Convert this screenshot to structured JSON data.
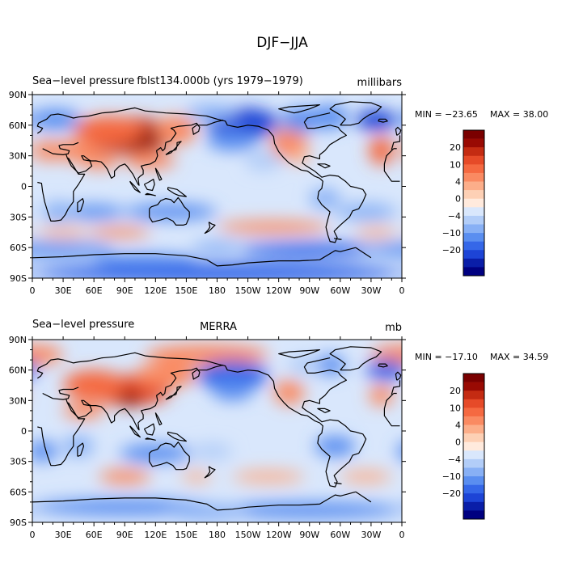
{
  "chart_data": {
    "type": "heatmap",
    "title": "DJF−JJA",
    "color_scale": {
      "colors": [
        "#000080",
        "#0a1ea8",
        "#1d44d6",
        "#3567e8",
        "#5a8ef0",
        "#88b0f5",
        "#b2cdf8",
        "#d9e7fc",
        "#ffeadd",
        "#fdd0b5",
        "#fcae8a",
        "#fa8a62",
        "#f56941",
        "#e64a28",
        "#c42b12",
        "#990a03",
        "#7a0000"
      ],
      "tick_labels": [
        "20",
        "10",
        "4",
        "0",
        "−4",
        "−10",
        "−20"
      ]
    },
    "x_ticks": [
      "0",
      "30E",
      "60E",
      "90E",
      "120E",
      "150E",
      "180",
      "150W",
      "120W",
      "90W",
      "60W",
      "30W",
      "0"
    ],
    "y_ticks": [
      "90N",
      "60N",
      "30N",
      "0",
      "30S",
      "60S",
      "90S"
    ],
    "panels": [
      {
        "variable": "Sea−level pressure",
        "source": "fblst134.000b (yrs 1979−1979)",
        "units": "millibars",
        "min_label": "MIN = −23.65",
        "max_label": "MAX =   38.00",
        "min": -23.65,
        "max": 38.0
      },
      {
        "variable": "Sea−level pressure",
        "source": "MERRA",
        "units": "mb",
        "min_label": "MIN = −17.10",
        "max_label": "MAX =  34.59",
        "min": -17.1,
        "max": 34.59
      }
    ]
  }
}
